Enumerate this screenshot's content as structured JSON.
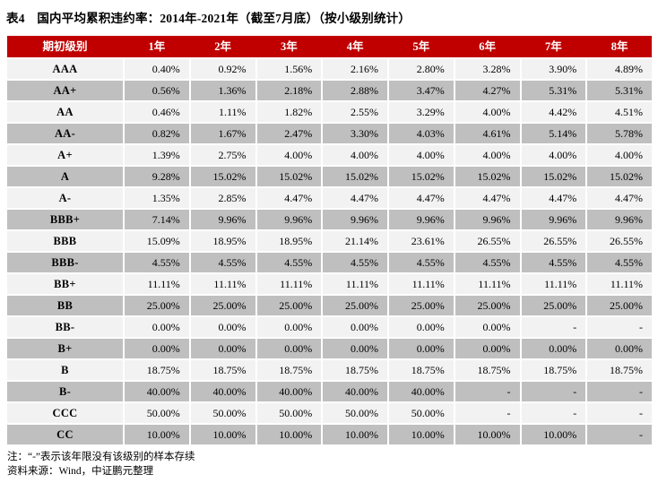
{
  "title": "表4　国内平均累积违约率：2014年-2021年（截至7月底）（按小级别统计）",
  "colors": {
    "header_bg": "#C00000",
    "header_text": "#FFFFFF",
    "row_light": "#F2F2F2",
    "row_dark": "#BFBFBF",
    "text": "#000000"
  },
  "table": {
    "columns": [
      "期初级别",
      "1年",
      "2年",
      "3年",
      "4年",
      "5年",
      "6年",
      "7年",
      "8年"
    ],
    "rows": [
      {
        "rating": "AAA",
        "values": [
          "0.40%",
          "0.92%",
          "1.56%",
          "2.16%",
          "2.80%",
          "3.28%",
          "3.90%",
          "4.89%"
        ]
      },
      {
        "rating": "AA+",
        "values": [
          "0.56%",
          "1.36%",
          "2.18%",
          "2.88%",
          "3.47%",
          "4.27%",
          "5.31%",
          "5.31%"
        ]
      },
      {
        "rating": "AA",
        "values": [
          "0.46%",
          "1.11%",
          "1.82%",
          "2.55%",
          "3.29%",
          "4.00%",
          "4.42%",
          "4.51%"
        ]
      },
      {
        "rating": "AA-",
        "values": [
          "0.82%",
          "1.67%",
          "2.47%",
          "3.30%",
          "4.03%",
          "4.61%",
          "5.14%",
          "5.78%"
        ]
      },
      {
        "rating": "A+",
        "values": [
          "1.39%",
          "2.75%",
          "4.00%",
          "4.00%",
          "4.00%",
          "4.00%",
          "4.00%",
          "4.00%"
        ]
      },
      {
        "rating": "A",
        "values": [
          "9.28%",
          "15.02%",
          "15.02%",
          "15.02%",
          "15.02%",
          "15.02%",
          "15.02%",
          "15.02%"
        ]
      },
      {
        "rating": "A-",
        "values": [
          "1.35%",
          "2.85%",
          "4.47%",
          "4.47%",
          "4.47%",
          "4.47%",
          "4.47%",
          "4.47%"
        ]
      },
      {
        "rating": "BBB+",
        "values": [
          "7.14%",
          "9.96%",
          "9.96%",
          "9.96%",
          "9.96%",
          "9.96%",
          "9.96%",
          "9.96%"
        ]
      },
      {
        "rating": "BBB",
        "values": [
          "15.09%",
          "18.95%",
          "18.95%",
          "21.14%",
          "23.61%",
          "26.55%",
          "26.55%",
          "26.55%"
        ]
      },
      {
        "rating": "BBB-",
        "values": [
          "4.55%",
          "4.55%",
          "4.55%",
          "4.55%",
          "4.55%",
          "4.55%",
          "4.55%",
          "4.55%"
        ]
      },
      {
        "rating": "BB+",
        "values": [
          "11.11%",
          "11.11%",
          "11.11%",
          "11.11%",
          "11.11%",
          "11.11%",
          "11.11%",
          "11.11%"
        ]
      },
      {
        "rating": "BB",
        "values": [
          "25.00%",
          "25.00%",
          "25.00%",
          "25.00%",
          "25.00%",
          "25.00%",
          "25.00%",
          "25.00%"
        ]
      },
      {
        "rating": "BB-",
        "values": [
          "0.00%",
          "0.00%",
          "0.00%",
          "0.00%",
          "0.00%",
          "0.00%",
          "-",
          "-"
        ]
      },
      {
        "rating": "B+",
        "values": [
          "0.00%",
          "0.00%",
          "0.00%",
          "0.00%",
          "0.00%",
          "0.00%",
          "0.00%",
          "0.00%"
        ]
      },
      {
        "rating": "B",
        "values": [
          "18.75%",
          "18.75%",
          "18.75%",
          "18.75%",
          "18.75%",
          "18.75%",
          "18.75%",
          "18.75%"
        ]
      },
      {
        "rating": "B-",
        "values": [
          "40.00%",
          "40.00%",
          "40.00%",
          "40.00%",
          "40.00%",
          "-",
          "-",
          "-"
        ]
      },
      {
        "rating": "CCC",
        "values": [
          "50.00%",
          "50.00%",
          "50.00%",
          "50.00%",
          "50.00%",
          "-",
          "-",
          "-"
        ]
      },
      {
        "rating": "CC",
        "values": [
          "10.00%",
          "10.00%",
          "10.00%",
          "10.00%",
          "10.00%",
          "10.00%",
          "10.00%",
          "-"
        ]
      }
    ]
  },
  "notes": [
    "注：“-”表示该年限没有该级别的样本存续",
    "资料来源：Wind，中证鹏元整理"
  ]
}
